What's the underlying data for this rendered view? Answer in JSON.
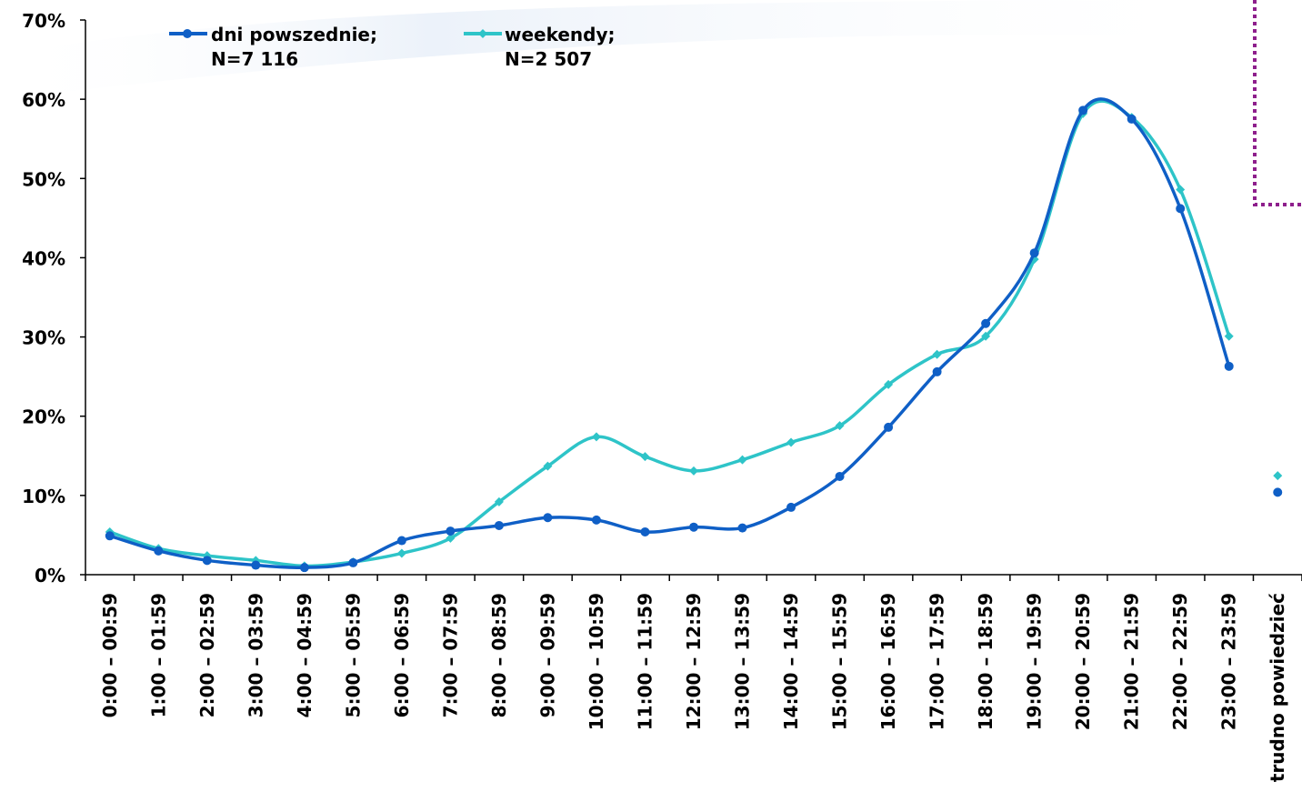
{
  "colors": {
    "weekday": "#0f5fc6",
    "weekend": "#2ec4c8",
    "accent_dotted": "#8e1f8c",
    "axis": "#000000"
  },
  "legend": {
    "weekday_line1": "dni powszednie;",
    "weekday_line2": "N=7 116",
    "weekend_line1": "weekendy;",
    "weekend_line2": "N=2 507"
  },
  "chart_data": {
    "type": "line",
    "title": "",
    "xlabel": "",
    "ylabel": "",
    "ylim": [
      0,
      70
    ],
    "y_ticks": [
      "0%",
      "10%",
      "20%",
      "30%",
      "40%",
      "50%",
      "60%",
      "70%"
    ],
    "categories": [
      "0:00 – 00:59",
      "1:00 – 01:59",
      "2:00 – 02:59",
      "3:00 – 03:59",
      "4:00 – 04:59",
      "5:00 – 05:59",
      "6:00 – 06:59",
      "7:00 – 07:59",
      "8:00 – 08:59",
      "9:00 – 09:59",
      "10:00 – 10:59",
      "11:00 – 11:59",
      "12:00 – 12:59",
      "13:00 – 13:59",
      "14:00 – 14:59",
      "15:00 – 15:59",
      "16:00 – 16:59",
      "17:00 – 17:59",
      "18:00 – 18:59",
      "19:00 – 19:59",
      "20:00 – 20:59",
      "21:00 – 21:59",
      "22:00 – 22:59",
      "23:00 – 23:59",
      "trudno powiedzieć"
    ],
    "grid": false,
    "legend_position": "top-left",
    "series": [
      {
        "name": "dni powszednie; N=7 116",
        "marker": "circle",
        "values": [
          4.9,
          3.0,
          1.8,
          1.2,
          0.9,
          1.5,
          4.3,
          5.5,
          6.2,
          7.2,
          6.9,
          5.4,
          6.0,
          5.9,
          8.5,
          12.4,
          18.6,
          25.6,
          31.7,
          40.6,
          58.6,
          57.5,
          46.2,
          26.3,
          10.4
        ]
      },
      {
        "name": "weekendy; N=2 507",
        "marker": "diamond",
        "values": [
          5.4,
          3.3,
          2.4,
          1.8,
          1.1,
          1.6,
          2.7,
          4.6,
          9.2,
          13.7,
          17.4,
          14.9,
          13.1,
          14.5,
          16.7,
          18.8,
          24.0,
          27.8,
          30.1,
          39.8,
          58.2,
          57.7,
          48.6,
          30.1,
          12.5
        ]
      }
    ]
  }
}
